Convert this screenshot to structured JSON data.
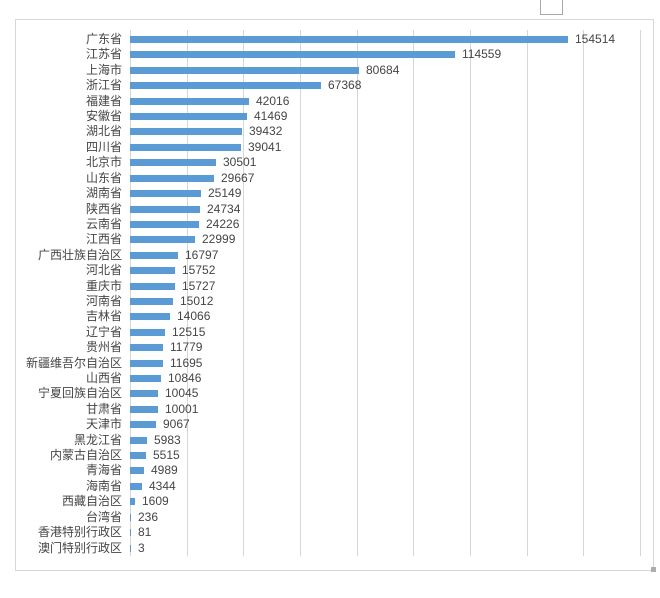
{
  "chart_data": {
    "type": "bar",
    "orientation": "horizontal",
    "title": "",
    "xlabel": "",
    "ylabel": "",
    "categories": [
      "广东省",
      "江苏省",
      "上海市",
      "浙江省",
      "福建省",
      "安徽省",
      "湖北省",
      "四川省",
      "北京市",
      "山东省",
      "湖南省",
      "陕西省",
      "云南省",
      "江西省",
      "广西壮族自治区",
      "河北省",
      "重庆市",
      "河南省",
      "吉林省",
      "辽宁省",
      "贵州省",
      "新疆维吾尔自治区",
      "山西省",
      "宁夏回族自治区",
      "甘肃省",
      "天津市",
      "黑龙江省",
      "内蒙古自治区",
      "青海省",
      "海南省",
      "西藏自治区",
      "台湾省",
      "香港特别行政区",
      "澳门特别行政区"
    ],
    "values": [
      154514,
      114559,
      80684,
      67368,
      42016,
      41469,
      39432,
      39041,
      30501,
      29667,
      25149,
      24734,
      24226,
      22999,
      16797,
      15752,
      15727,
      15012,
      14066,
      12515,
      11779,
      11695,
      10846,
      10045,
      10001,
      9067,
      5983,
      5515,
      4989,
      4344,
      1609,
      236,
      81,
      3
    ],
    "value_labels": [
      "154514",
      "114559",
      "80684",
      "67368",
      "42016",
      "41469",
      "39432",
      "39041",
      "30501",
      "29667",
      "25149",
      "24734",
      "24226",
      "22999",
      "16797",
      "15752",
      "15727",
      "15012",
      "14066",
      "12515",
      "11779",
      "11695",
      "10846",
      "10045",
      "10001",
      "9067",
      "5983",
      "5515",
      "4989",
      "4344",
      "1609",
      "236",
      "81",
      "3"
    ],
    "xlim": [
      0,
      180000
    ],
    "grid_step": 20000,
    "grid": true,
    "legend": false,
    "axis_tick_labels_visible": false
  },
  "colors": {
    "bar": "#5B9BD5",
    "grid": "#D6D6D6",
    "frame_border": "#D7D7D7",
    "text": "#454545",
    "background": "#FFFFFF"
  }
}
